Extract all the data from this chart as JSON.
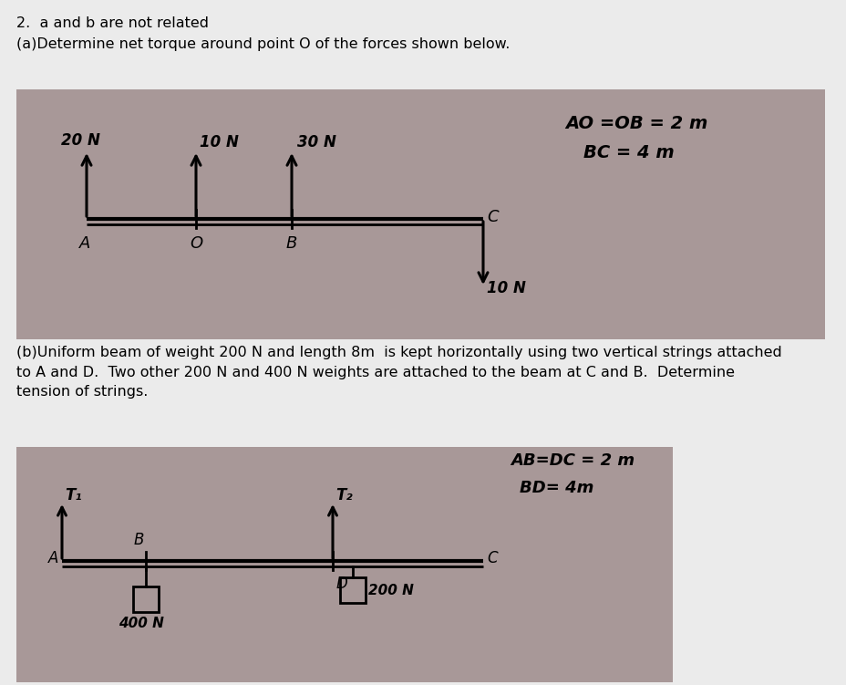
{
  "bg_color": "#ebebeb",
  "panel1_bg": "#a89898",
  "panel2_bg": "#a89898",
  "title_text": "2.  a and b are not related",
  "part_a_text": "(a)Determine net torque around point O of the forces shown below.",
  "part_b_text": "(b)Uniform beam of weight 200 N and length 8m  is kept horizontally using two vertical strings attached\nto A and D.  Two other 200 N and 400 N weights are attached to the beam at C and B.  Determine\ntension of strings.",
  "panel1_note_line1": "AO =OB = 2 m",
  "panel1_note_line2": "BC = 4 m",
  "panel2_note_line1": "AB=DC = 2 m",
  "panel2_note_line2": "BD= 4m"
}
